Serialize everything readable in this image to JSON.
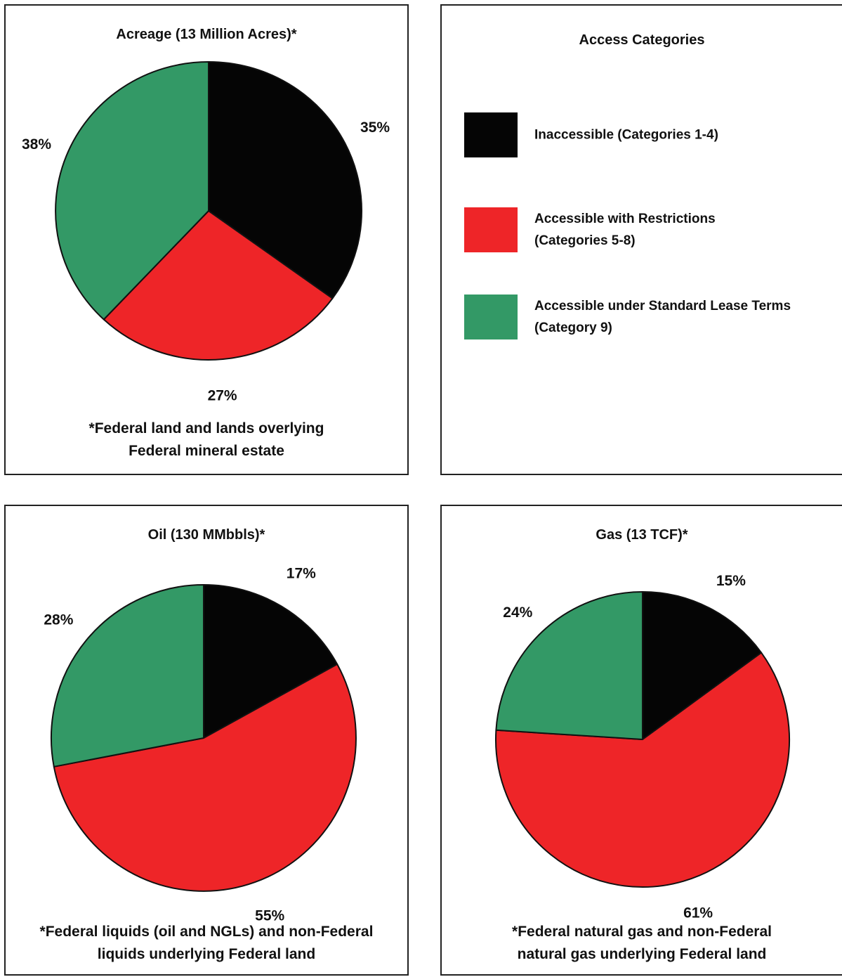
{
  "colors": {
    "inaccessible": "#050505",
    "restricted": "#ee2528",
    "standard": "#339966",
    "outline": "#111111"
  },
  "legend": {
    "title": "Access Categories",
    "items": [
      {
        "label": "Inaccessible (Categories 1-4)",
        "color": "#050505"
      },
      {
        "label": "Accessible with Restrictions\n(Categories 5-8)",
        "color": "#ee2528"
      },
      {
        "label": "Accessible under Standard Lease Terms\n(Category 9)",
        "color": "#339966"
      }
    ]
  },
  "chart_data": [
    {
      "type": "pie",
      "title": "Acreage (13 Million Acres)*",
      "footnote": "*Federal land and lands overlying\nFederal mineral estate",
      "slices": [
        {
          "name": "Inaccessible (Categories 1-4)",
          "value": 35,
          "label": "35%",
          "color": "#050505"
        },
        {
          "name": "Accessible with Restrictions (Categories 5-8)",
          "value": 27,
          "label": "27%",
          "color": "#ee2528"
        },
        {
          "name": "Accessible under Standard Lease Terms (Category 9)",
          "value": 38,
          "label": "38%",
          "color": "#339966"
        }
      ]
    },
    {
      "type": "pie",
      "title": "Oil (130 MMbbls)*",
      "footnote": "*Federal liquids (oil and NGLs) and non-Federal\nliquids underlying Federal land",
      "slices": [
        {
          "name": "Inaccessible (Categories 1-4)",
          "value": 17,
          "label": "17%",
          "color": "#050505"
        },
        {
          "name": "Accessible with Restrictions (Categories 5-8)",
          "value": 55,
          "label": "55%",
          "color": "#ee2528"
        },
        {
          "name": "Accessible under Standard Lease Terms (Category 9)",
          "value": 28,
          "label": "28%",
          "color": "#339966"
        }
      ]
    },
    {
      "type": "pie",
      "title": "Gas (13 TCF)*",
      "footnote": "*Federal natural gas and non-Federal\nnatural gas underlying Federal land",
      "slices": [
        {
          "name": "Inaccessible (Categories 1-4)",
          "value": 15,
          "label": "15%",
          "color": "#050505"
        },
        {
          "name": "Accessible with Restrictions (Categories 5-8)",
          "value": 61,
          "label": "61%",
          "color": "#ee2528"
        },
        {
          "name": "Accessible under Standard Lease Terms (Category 9)",
          "value": 24,
          "label": "24%",
          "color": "#339966"
        }
      ]
    }
  ]
}
